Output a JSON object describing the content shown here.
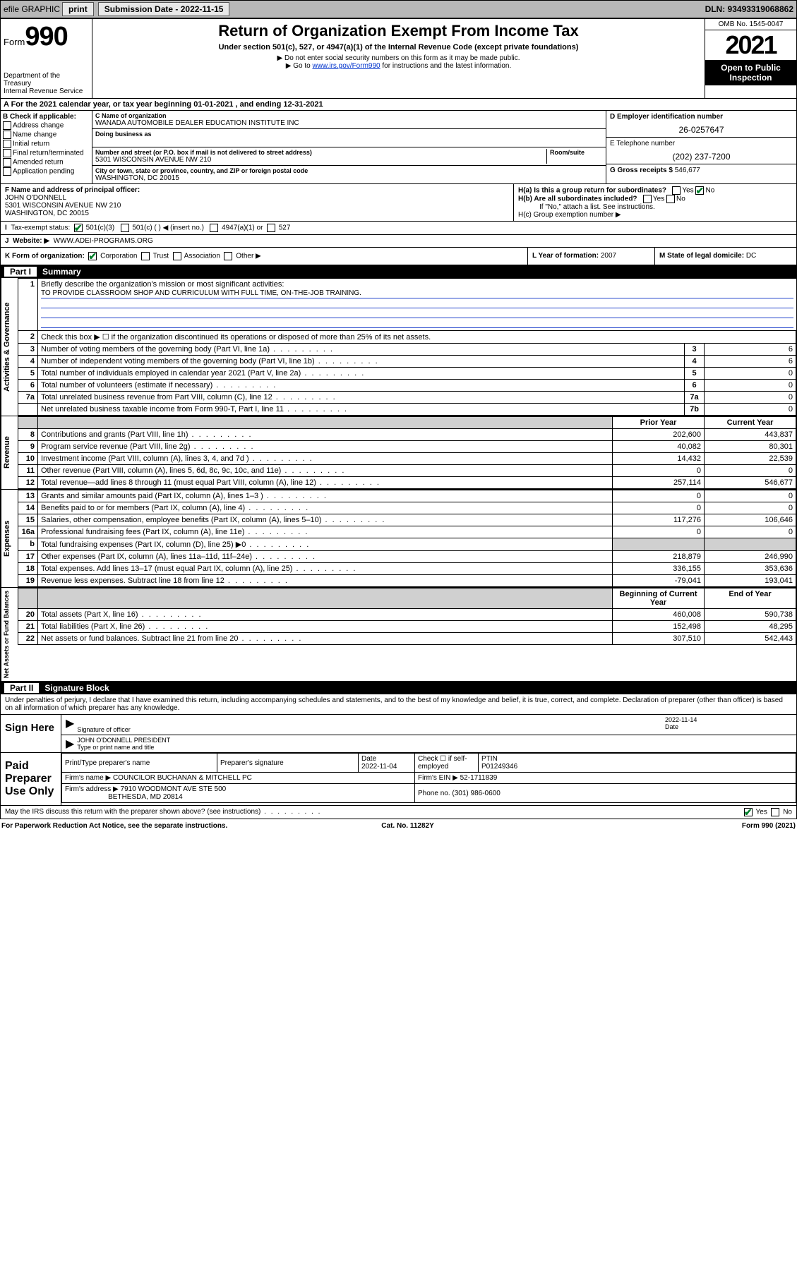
{
  "topbar": {
    "efile": "efile GRAPHIC",
    "print": "print",
    "subdate_label": "Submission Date - 2022-11-15",
    "dln": "DLN: 93493319068862"
  },
  "header": {
    "form_label": "Form",
    "form_number": "990",
    "dept": "Department of the Treasury",
    "irs": "Internal Revenue Service",
    "title": "Return of Organization Exempt From Income Tax",
    "subtitle": "Under section 501(c), 527, or 4947(a)(1) of the Internal Revenue Code (except private foundations)",
    "note1": "▶ Do not enter social security numbers on this form as it may be made public.",
    "note2_pre": "▶ Go to ",
    "note2_link": "www.irs.gov/Form990",
    "note2_post": " for instructions and the latest information.",
    "omb": "OMB No. 1545-0047",
    "year": "2021",
    "open": "Open to Public Inspection"
  },
  "rowA": "A For the 2021 calendar year, or tax year beginning 01-01-2021   , and ending 12-31-2021",
  "boxB": {
    "title": "B Check if applicable:",
    "items": [
      "Address change",
      "Name change",
      "Initial return",
      "Final return/terminated",
      "Amended return",
      "Application pending"
    ]
  },
  "boxC": {
    "name_lab": "C Name of organization",
    "name": "WANADA AUTOMOBILE DEALER EDUCATION INSTITUTE INC",
    "dba_lab": "Doing business as",
    "addr_lab": "Number and street (or P.O. box if mail is not delivered to street address)",
    "room_lab": "Room/suite",
    "addr": "5301 WISCONSIN AVENUE NW 210",
    "city_lab": "City or town, state or province, country, and ZIP or foreign postal code",
    "city": "WASHINGTON, DC  20015"
  },
  "boxD": {
    "lab": "D Employer identification number",
    "val": "26-0257647"
  },
  "boxE": {
    "lab": "E Telephone number",
    "val": "(202) 237-7200"
  },
  "boxG": {
    "lab": "G Gross receipts $",
    "val": "546,677"
  },
  "rowF": {
    "lab": "F  Name and address of principal officer:",
    "name": "JOHN O'DONNELL",
    "addr1": "5301 WISCONSIN AVENUE NW 210",
    "addr2": "WASHINGTON, DC  20015"
  },
  "rowH": {
    "a": "H(a)  Is this a group return for subordinates?",
    "b": "H(b)  Are all subordinates included?",
    "b_note": "If \"No,\" attach a list. See instructions.",
    "c": "H(c)  Group exemption number ▶",
    "yes": "Yes",
    "no": "No"
  },
  "rowI": {
    "lab": "I",
    "text": "Tax-exempt status:",
    "opts": [
      "501(c)(3)",
      "501(c) (  ) ◀ (insert no.)",
      "4947(a)(1) or",
      "527"
    ]
  },
  "rowJ": {
    "lab": "J",
    "text": "Website: ▶",
    "val": "WWW.ADEI-PROGRAMS.ORG"
  },
  "rowK": {
    "k": "K Form of organization:",
    "opts": [
      "Corporation",
      "Trust",
      "Association",
      "Other ▶"
    ],
    "l_lab": "L Year of formation:",
    "l_val": "2007",
    "m_lab": "M State of legal domicile:",
    "m_val": "DC"
  },
  "part1": {
    "num": "Part I",
    "title": "Summary"
  },
  "summary": {
    "q1_lab": "Briefly describe the organization's mission or most significant activities:",
    "q1_val": "TO PROVIDE CLASSROOM SHOP AND CURRICULUM WITH FULL TIME, ON-THE-JOB TRAINING.",
    "q2": "Check this box ▶ ☐  if the organization discontinued its operations or disposed of more than 25% of its net assets.",
    "lines_gov": [
      {
        "n": "3",
        "t": "Number of voting members of the governing body (Part VI, line 1a)",
        "box": "3",
        "v": "6"
      },
      {
        "n": "4",
        "t": "Number of independent voting members of the governing body (Part VI, line 1b)",
        "box": "4",
        "v": "6"
      },
      {
        "n": "5",
        "t": "Total number of individuals employed in calendar year 2021 (Part V, line 2a)",
        "box": "5",
        "v": "0"
      },
      {
        "n": "6",
        "t": "Total number of volunteers (estimate if necessary)",
        "box": "6",
        "v": "0"
      },
      {
        "n": "7a",
        "t": "Total unrelated business revenue from Part VIII, column (C), line 12",
        "box": "7a",
        "v": "0"
      },
      {
        "n": "",
        "t": "Net unrelated business taxable income from Form 990-T, Part I, line 11",
        "box": "7b",
        "v": "0"
      }
    ],
    "col_prior": "Prior Year",
    "col_current": "Current Year",
    "col_boy": "Beginning of Current Year",
    "col_eoy": "End of Year",
    "rev": [
      {
        "n": "8",
        "t": "Contributions and grants (Part VIII, line 1h)",
        "p": "202,600",
        "c": "443,837"
      },
      {
        "n": "9",
        "t": "Program service revenue (Part VIII, line 2g)",
        "p": "40,082",
        "c": "80,301"
      },
      {
        "n": "10",
        "t": "Investment income (Part VIII, column (A), lines 3, 4, and 7d )",
        "p": "14,432",
        "c": "22,539"
      },
      {
        "n": "11",
        "t": "Other revenue (Part VIII, column (A), lines 5, 6d, 8c, 9c, 10c, and 11e)",
        "p": "0",
        "c": "0"
      },
      {
        "n": "12",
        "t": "Total revenue—add lines 8 through 11 (must equal Part VIII, column (A), line 12)",
        "p": "257,114",
        "c": "546,677"
      }
    ],
    "exp": [
      {
        "n": "13",
        "t": "Grants and similar amounts paid (Part IX, column (A), lines 1–3 )",
        "p": "0",
        "c": "0"
      },
      {
        "n": "14",
        "t": "Benefits paid to or for members (Part IX, column (A), line 4)",
        "p": "0",
        "c": "0"
      },
      {
        "n": "15",
        "t": "Salaries, other compensation, employee benefits (Part IX, column (A), lines 5–10)",
        "p": "117,276",
        "c": "106,646"
      },
      {
        "n": "16a",
        "t": "Professional fundraising fees (Part IX, column (A), line 11e)",
        "p": "0",
        "c": "0"
      },
      {
        "n": "b",
        "t": "Total fundraising expenses (Part IX, column (D), line 25) ▶0",
        "p": "",
        "c": "",
        "shade": true
      },
      {
        "n": "17",
        "t": "Other expenses (Part IX, column (A), lines 11a–11d, 11f–24e)",
        "p": "218,879",
        "c": "246,990"
      },
      {
        "n": "18",
        "t": "Total expenses. Add lines 13–17 (must equal Part IX, column (A), line 25)",
        "p": "336,155",
        "c": "353,636"
      },
      {
        "n": "19",
        "t": "Revenue less expenses. Subtract line 18 from line 12",
        "p": "-79,041",
        "c": "193,041"
      }
    ],
    "net": [
      {
        "n": "20",
        "t": "Total assets (Part X, line 16)",
        "p": "460,008",
        "c": "590,738"
      },
      {
        "n": "21",
        "t": "Total liabilities (Part X, line 26)",
        "p": "152,498",
        "c": "48,295"
      },
      {
        "n": "22",
        "t": "Net assets or fund balances. Subtract line 21 from line 20",
        "p": "307,510",
        "c": "542,443"
      }
    ],
    "vlab_gov": "Activities & Governance",
    "vlab_rev": "Revenue",
    "vlab_exp": "Expenses",
    "vlab_net": "Net Assets or Fund Balances"
  },
  "part2": {
    "num": "Part II",
    "title": "Signature Block"
  },
  "sig": {
    "perjury": "Under penalties of perjury, I declare that I have examined this return, including accompanying schedules and statements, and to the best of my knowledge and belief, it is true, correct, and complete. Declaration of preparer (other than officer) is based on all information of which preparer has any knowledge.",
    "sign_here": "Sign Here",
    "officer_lab": "Signature of officer",
    "date_lab": "Date",
    "date_val": "2022-11-14",
    "officer_name": "JOHN O'DONNELL  PRESIDENT",
    "officer_name_lab": "Type or print name and title"
  },
  "prep": {
    "label": "Paid Preparer Use Only",
    "col1": "Print/Type preparer's name",
    "col2": "Preparer's signature",
    "col3": "Date",
    "col3v": "2022-11-04",
    "col4": "Check ☐ if self-employed",
    "col5": "PTIN",
    "col5v": "P01249346",
    "firm_lab": "Firm's name   ▶",
    "firm": "COUNCILOR BUCHANAN & MITCHELL PC",
    "ein_lab": "Firm's EIN ▶",
    "ein": "52-1711839",
    "addr_lab": "Firm's address ▶",
    "addr1": "7910 WOODMONT AVE STE 500",
    "addr2": "BETHESDA, MD  20814",
    "phone_lab": "Phone no.",
    "phone": "(301) 986-0600"
  },
  "bottom": {
    "discuss": "May the IRS discuss this return with the preparer shown above? (see instructions)",
    "yes": "Yes",
    "no": "No",
    "paperwork": "For Paperwork Reduction Act Notice, see the separate instructions.",
    "cat": "Cat. No. 11282Y",
    "formno": "Form 990 (2021)"
  }
}
